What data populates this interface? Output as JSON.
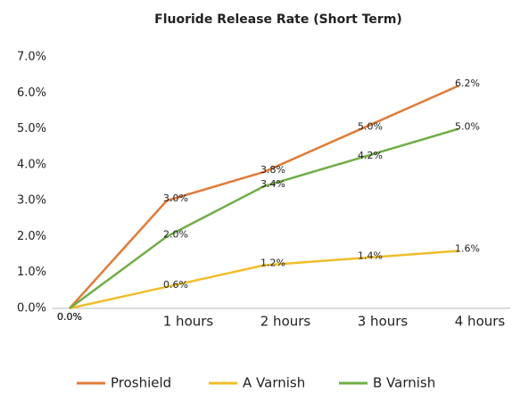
{
  "chart_data": {
    "type": "line",
    "title": "Fluoride Release Rate (Short Term)",
    "categories": [
      null,
      "1 hours",
      "2 hours",
      "3 hours",
      "4 hours"
    ],
    "series": [
      {
        "name": "Proshield",
        "color": "#e07b39",
        "values": [
          0,
          3.0,
          3.8,
          5.0,
          6.2
        ],
        "value_labels": [
          "0.0%",
          "3.0%",
          "3.8%",
          "5.0%",
          "6.2%"
        ]
      },
      {
        "name": "A Varnish",
        "color": "#f0be2a",
        "values": [
          0,
          0.6,
          1.2,
          1.4,
          1.6
        ],
        "value_labels": [
          "0.0%",
          "0.6%",
          "1.2%",
          "1.4%",
          "1.6%"
        ]
      },
      {
        "name": "B Varnish",
        "color": "#70ad47",
        "values": [
          0,
          2.0,
          3.4,
          4.2,
          5.0
        ],
        "value_labels": [
          "0.0%",
          "2.0%",
          "3.4%",
          "4.2%",
          "5.0%"
        ]
      }
    ],
    "ylim": [
      0,
      7
    ],
    "yticks": [
      {
        "value": 0,
        "label": "0.0%"
      },
      {
        "value": 1,
        "label": "1.0%"
      },
      {
        "value": 2,
        "label": "2.0%"
      },
      {
        "value": 3,
        "label": "3.0%"
      },
      {
        "value": 4,
        "label": "4.0%"
      },
      {
        "value": 5,
        "label": "5.0%"
      },
      {
        "value": 6,
        "label": "6.0%"
      },
      {
        "value": 7,
        "label": "7.0%"
      }
    ],
    "legend": "bottom"
  }
}
